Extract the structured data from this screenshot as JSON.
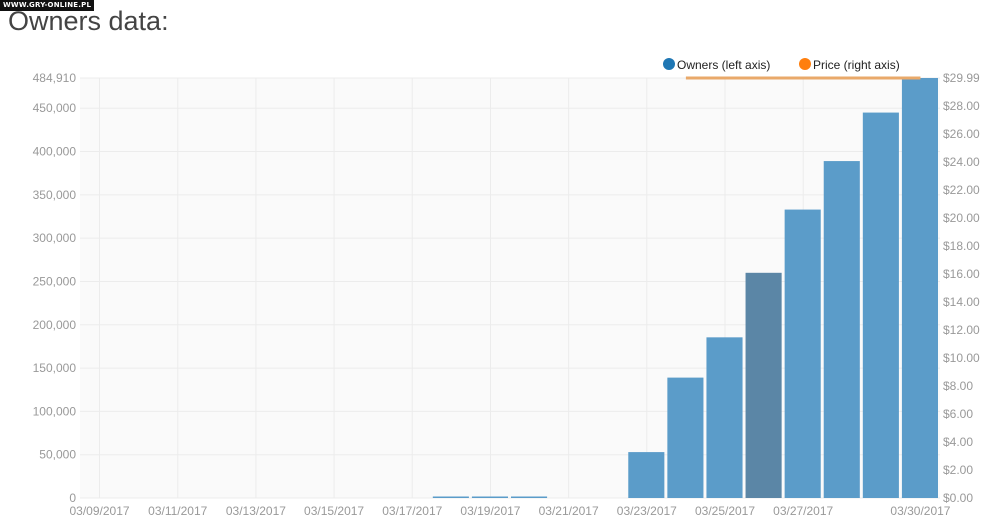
{
  "watermark": "WWW.GRY-ONLINE.PL",
  "page_title": "Owners data:",
  "colors": {
    "owners": "#5b9cc9",
    "owners_highlight": "#5b86a6",
    "price": "#e9a96a",
    "legend_owners": "#1f77b4",
    "legend_price": "#ff7f0e",
    "grid": "#ececec",
    "tick_text": "#999999"
  },
  "chart_data": {
    "type": "bar",
    "title": "",
    "xlabel": "",
    "ylabel": "",
    "legend": {
      "placement": "top-right",
      "entries": [
        "Owners (left axis)",
        "Price (right axis)"
      ]
    },
    "grid": true,
    "x_tick_labels": [
      "03/09/2017",
      "03/11/2017",
      "03/13/2017",
      "03/15/2017",
      "03/17/2017",
      "03/19/2017",
      "03/21/2017",
      "03/23/2017",
      "03/25/2017",
      "03/27/2017",
      "03/30/2017"
    ],
    "left_axis": {
      "ylim": [
        0,
        484910
      ],
      "ticks": [
        "0",
        "50,000",
        "100,000",
        "150,000",
        "200,000",
        "250,000",
        "300,000",
        "350,000",
        "400,000",
        "450,000",
        "484,910"
      ]
    },
    "right_axis": {
      "ylim": [
        0,
        29.99
      ],
      "ticks": [
        "$0.00",
        "$2.00",
        "$4.00",
        "$6.00",
        "$8.00",
        "$10.00",
        "$12.00",
        "$14.00",
        "$16.00",
        "$18.00",
        "$20.00",
        "$22.00",
        "$24.00",
        "$26.00",
        "$28.00",
        "$29.99"
      ]
    },
    "series": [
      {
        "name": "Owners (left axis)",
        "axis": "left",
        "type": "bar",
        "x": [
          "03/09/2017",
          "03/10/2017",
          "03/11/2017",
          "03/12/2017",
          "03/13/2017",
          "03/14/2017",
          "03/15/2017",
          "03/16/2017",
          "03/17/2017",
          "03/18/2017",
          "03/19/2017",
          "03/20/2017",
          "03/21/2017",
          "03/22/2017",
          "03/23/2017",
          "03/24/2017",
          "03/25/2017",
          "03/26/2017",
          "03/27/2017",
          "03/28/2017",
          "03/29/2017",
          "03/30/2017"
        ],
        "values": [
          0,
          0,
          0,
          0,
          0,
          0,
          0,
          0,
          0,
          1000,
          1000,
          1000,
          0,
          0,
          53000,
          139000,
          185500,
          260000,
          333000,
          389000,
          445000,
          484910
        ],
        "highlighted": "03/26/2017"
      },
      {
        "name": "Price (right axis)",
        "axis": "right",
        "type": "line",
        "x": [
          "03/24/2017",
          "03/30/2017"
        ],
        "values": [
          29.99,
          29.99
        ]
      }
    ]
  }
}
